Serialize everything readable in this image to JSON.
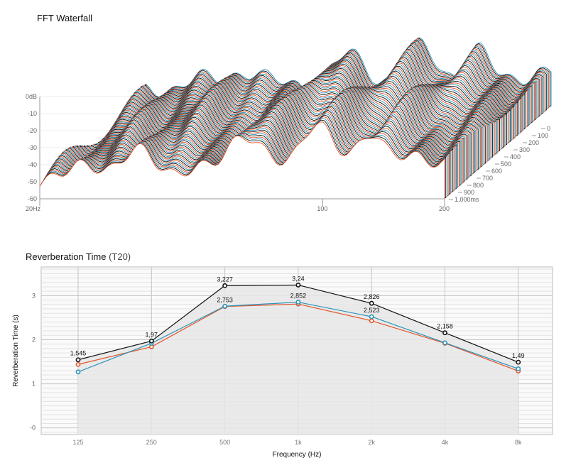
{
  "colors": {
    "accent_orange": "#e2542a",
    "accent_blue": "#2a93b8",
    "accent_black": "#111111",
    "grid": "#d0d0d0",
    "fill": "#e6e6e6"
  },
  "chart_data": [
    {
      "type": "area",
      "title": "FFT Waterfall",
      "x_ticks": [
        "20Hz",
        "100",
        "200"
      ],
      "y_ticks": [
        "0dB",
        "-10",
        "-20",
        "-30",
        "-40",
        "-50",
        "-60"
      ],
      "z_ticks": [
        "0",
        "100",
        "200",
        "300",
        "400",
        "500",
        "600",
        "700",
        "800",
        "900",
        "1,000ms"
      ],
      "x_scale": "log",
      "x_range_hz": [
        20,
        200
      ],
      "y_range_db": [
        -60,
        0
      ],
      "z_range_ms": [
        0,
        1000
      ],
      "series_colors_cycle": [
        "#e2542a",
        "#111111",
        "#2a93b8"
      ]
    },
    {
      "type": "line",
      "title": "Reverberation Time",
      "title_suffix": "(T20)",
      "xlabel": "Frequency (Hz)",
      "ylabel": "Reverberation Time (s)",
      "categories": [
        "125",
        "250",
        "500",
        "1k",
        "2k",
        "4k",
        "8k"
      ],
      "y_ticks": [
        "-0",
        "1",
        "2",
        "3"
      ],
      "ylim": [
        -0.15,
        3.65
      ],
      "grid": true,
      "series": [
        {
          "color": "#111111",
          "values": [
            1.545,
            1.97,
            3.227,
            3.24,
            2.826,
            2.158,
            1.49
          ],
          "labels": [
            "1,545",
            "1,97",
            "3,227",
            "3,24",
            "2,826",
            "2,158",
            "1,49"
          ]
        },
        {
          "color": "#2a93b8",
          "values": [
            1.27,
            1.92,
            2.76,
            2.852,
            2.523,
            1.93,
            1.34
          ],
          "labels": [
            "",
            "",
            "",
            "2,852",
            "2,523",
            "",
            ""
          ]
        },
        {
          "color": "#e2542a",
          "values": [
            1.44,
            1.84,
            2.753,
            2.81,
            2.43,
            1.92,
            1.29
          ],
          "labels": [
            "",
            "",
            "2,753",
            "",
            "",
            "",
            ""
          ]
        }
      ]
    }
  ]
}
